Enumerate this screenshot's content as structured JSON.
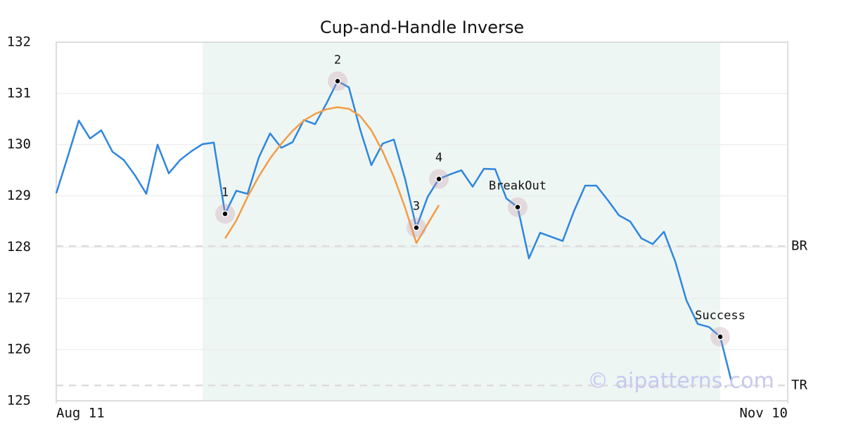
{
  "chart_data": {
    "type": "line",
    "title": "Cup-and-Handle Inverse",
    "x": [
      0,
      1,
      2,
      3,
      4,
      5,
      6,
      7,
      8,
      9,
      10,
      11,
      12,
      13,
      14,
      15,
      16,
      17,
      18,
      19,
      20,
      21,
      22,
      23,
      24,
      25,
      26,
      27,
      28,
      29,
      30,
      31,
      32,
      33,
      34,
      35,
      36,
      37,
      38,
      39,
      40,
      41,
      42,
      43,
      44,
      45,
      46,
      47,
      48,
      49,
      50,
      51,
      52,
      53,
      54,
      55,
      56,
      57,
      58,
      59,
      60
    ],
    "xlim": [
      0,
      65
    ],
    "xticks": [
      {
        "value": 0,
        "label": "Aug 11"
      },
      {
        "value": 65,
        "label": "Nov 10"
      }
    ],
    "ylim": [
      125,
      132
    ],
    "yticks": [
      125,
      126,
      127,
      128,
      129,
      130,
      131,
      132
    ],
    "grid": true,
    "highlight": [
      13,
      59
    ],
    "highlight_color": "#eef6f3",
    "series": [
      {
        "color": "#2e86de",
        "values": [
          129.05,
          129.75,
          130.47,
          130.12,
          130.28,
          129.86,
          129.7,
          129.4,
          129.04,
          130.0,
          129.44,
          129.7,
          129.87,
          130.01,
          130.04,
          128.65,
          129.1,
          129.04,
          129.75,
          130.22,
          129.94,
          130.05,
          130.48,
          130.4,
          130.8,
          131.24,
          131.12,
          130.3,
          129.6,
          130.02,
          130.1,
          129.33,
          128.38,
          128.98,
          129.33,
          129.42,
          129.5,
          129.18,
          129.53,
          129.52,
          128.95,
          128.78,
          127.78,
          128.28,
          128.2,
          128.12,
          128.7,
          129.2,
          129.2,
          128.92,
          128.62,
          128.5,
          128.17,
          128.06,
          128.3,
          127.72,
          126.96,
          126.5,
          126.44,
          126.25,
          125.38
        ]
      },
      {
        "color": "#f39c45",
        "values": [
          null,
          null,
          null,
          null,
          null,
          null,
          null,
          null,
          null,
          null,
          null,
          null,
          null,
          null,
          null,
          128.17,
          128.52,
          128.98,
          129.38,
          129.73,
          130.02,
          130.27,
          130.47,
          130.6,
          130.69,
          130.73,
          130.7,
          130.56,
          130.28,
          129.87,
          129.37,
          128.77,
          128.08,
          128.45,
          128.82,
          null,
          null,
          null,
          null,
          null,
          null,
          null,
          null,
          null,
          null,
          null,
          null,
          null,
          null,
          null,
          null,
          null,
          null,
          null,
          null,
          null,
          null,
          null,
          null,
          null,
          null
        ]
      }
    ],
    "points": [
      {
        "label": "1",
        "x": 15,
        "y": 128.65
      },
      {
        "label": "2",
        "x": 25,
        "y": 131.24
      },
      {
        "label": "3",
        "x": 32,
        "y": 128.38
      },
      {
        "label": "4",
        "x": 34,
        "y": 129.33
      },
      {
        "label": "BreakOut",
        "x": 41,
        "y": 128.78
      },
      {
        "label": "Success",
        "x": 59,
        "y": 126.25
      }
    ],
    "levels": [
      {
        "label": "BR",
        "value": 128.02
      },
      {
        "label": "TR",
        "value": 125.3
      }
    ],
    "watermark": "© aipatterns.com"
  }
}
